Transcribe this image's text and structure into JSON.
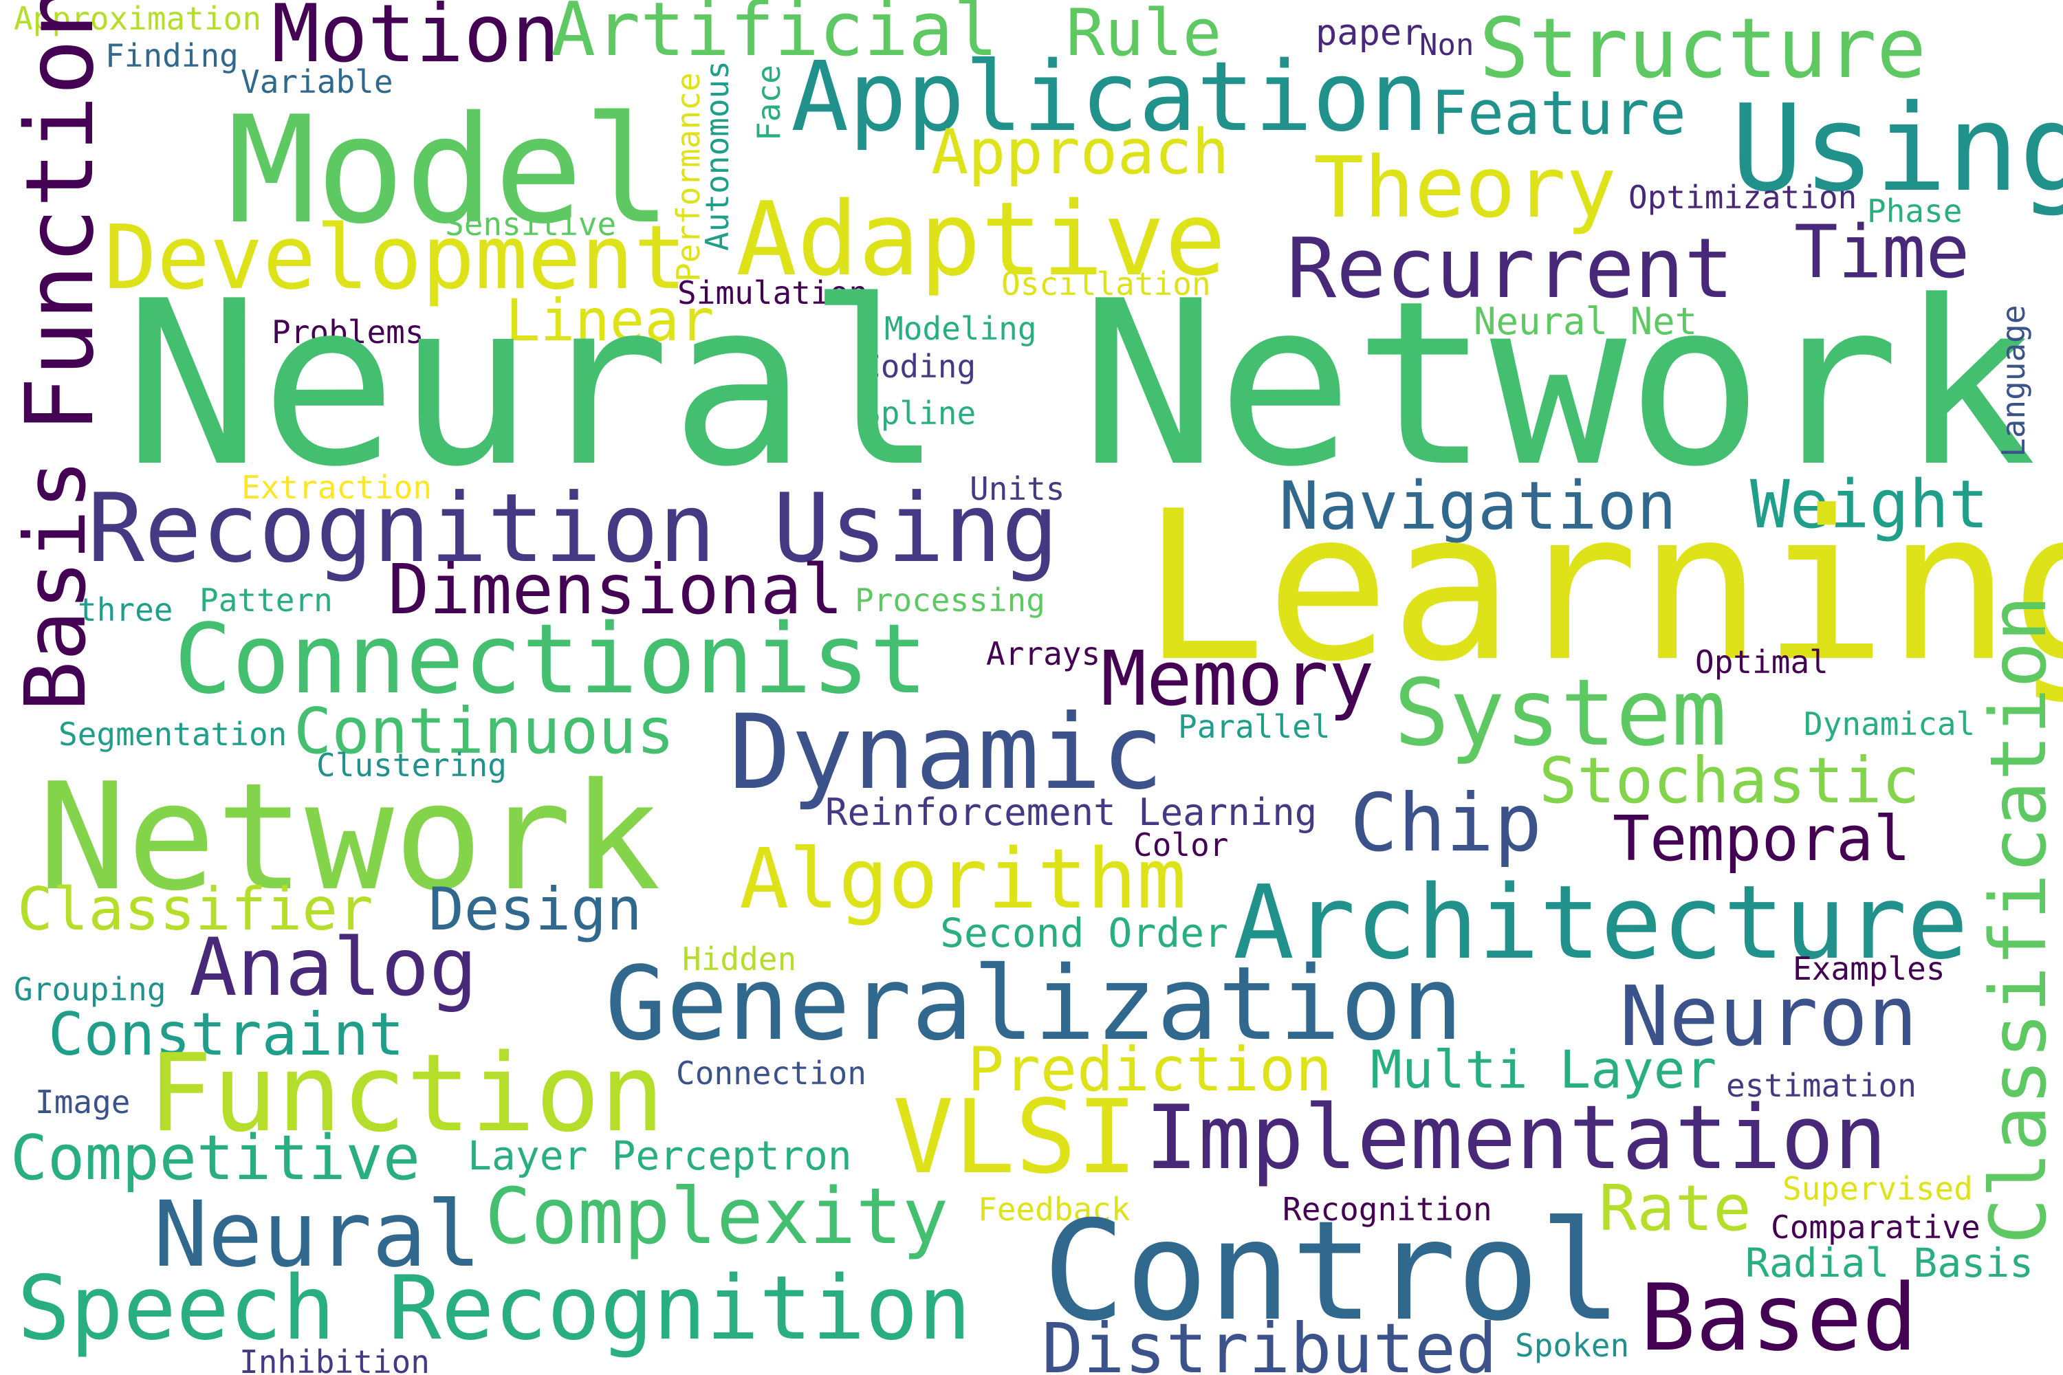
{
  "palette": {
    "lime": "#84d44b",
    "green": "#44bf70",
    "teal": "#21918c",
    "blue": "#31688e",
    "indigo": "#443983",
    "purple": "#440154",
    "yellow": "#dde318",
    "yellowgreen": "#b5de2b",
    "mint": "#5ec962",
    "seafoam": "#28ae80",
    "darkteal": "#1f9e89",
    "slate": "#3b528b",
    "navy": "#482878",
    "gold": "#fde725"
  },
  "words": [
    {
      "text": "Approximation",
      "color": "yellowgreen"
    },
    {
      "text": "Finding",
      "color": "blue"
    },
    {
      "text": "Variable",
      "color": "blue"
    },
    {
      "text": "Motion",
      "color": "purple"
    },
    {
      "text": "Artificial",
      "color": "mint"
    },
    {
      "text": "Rule",
      "color": "mint"
    },
    {
      "text": "paper",
      "color": "navy"
    },
    {
      "text": "Non",
      "color": "navy"
    },
    {
      "text": "Structure",
      "color": "mint"
    },
    {
      "text": "Model",
      "color": "mint"
    },
    {
      "text": "Application",
      "color": "teal"
    },
    {
      "text": "Feature",
      "color": "teal"
    },
    {
      "text": "Using",
      "color": "teal"
    },
    {
      "text": "Approach",
      "color": "yellow"
    },
    {
      "text": "Theory",
      "color": "yellow"
    },
    {
      "text": "Optimization",
      "color": "navy"
    },
    {
      "text": "Phase",
      "color": "seafoam"
    },
    {
      "text": "Sensitive",
      "color": "mint"
    },
    {
      "text": "Development",
      "color": "yellow"
    },
    {
      "text": "Adaptive",
      "color": "yellow"
    },
    {
      "text": "Recurrent",
      "color": "navy"
    },
    {
      "text": "Time",
      "color": "navy"
    },
    {
      "text": "Simulation",
      "color": "purple"
    },
    {
      "text": "Oscillation",
      "color": "yellow"
    },
    {
      "text": "Linear",
      "color": "yellow"
    },
    {
      "text": "Neural Net",
      "color": "mint"
    },
    {
      "text": "Problems",
      "color": "purple"
    },
    {
      "text": "Modeling",
      "color": "seafoam"
    },
    {
      "text": "Coding",
      "color": "indigo"
    },
    {
      "text": "Spline",
      "color": "seafoam"
    },
    {
      "text": "Neural Network",
      "color": "green"
    },
    {
      "text": "Extraction",
      "color": "gold"
    },
    {
      "text": "Units",
      "color": "indigo"
    },
    {
      "text": "Recognition Using",
      "color": "indigo"
    },
    {
      "text": "Navigation",
      "color": "blue"
    },
    {
      "text": "Weight",
      "color": "darkteal"
    },
    {
      "text": "Learning",
      "color": "yellow"
    },
    {
      "text": "Dimensional",
      "color": "purple"
    },
    {
      "text": "three",
      "color": "darkteal"
    },
    {
      "text": "Pattern",
      "color": "seafoam"
    },
    {
      "text": "Processing",
      "color": "mint"
    },
    {
      "text": "Connectionist",
      "color": "green"
    },
    {
      "text": "Arrays",
      "color": "purple"
    },
    {
      "text": "Memory",
      "color": "purple"
    },
    {
      "text": "Optimal",
      "color": "purple"
    },
    {
      "text": "System",
      "color": "mint"
    },
    {
      "text": "Segmentation",
      "color": "darkteal"
    },
    {
      "text": "Continuous",
      "color": "green"
    },
    {
      "text": "Dynamic",
      "color": "slate"
    },
    {
      "text": "Parallel",
      "color": "darkteal"
    },
    {
      "text": "Dynamical",
      "color": "seafoam"
    },
    {
      "text": "Clustering",
      "color": "teal"
    },
    {
      "text": "Network",
      "color": "lime"
    },
    {
      "text": "Stochastic",
      "color": "lime"
    },
    {
      "text": "Reinforcement Learning",
      "color": "indigo"
    },
    {
      "text": "Chip",
      "color": "slate"
    },
    {
      "text": "Temporal",
      "color": "purple"
    },
    {
      "text": "Color",
      "color": "purple"
    },
    {
      "text": "Algorithm",
      "color": "yellow"
    },
    {
      "text": "Classifier",
      "color": "yellowgreen"
    },
    {
      "text": "Design",
      "color": "blue"
    },
    {
      "text": "Architecture",
      "color": "teal"
    },
    {
      "text": "Second Order",
      "color": "seafoam"
    },
    {
      "text": "Analog",
      "color": "navy"
    },
    {
      "text": "Hidden",
      "color": "yellowgreen"
    },
    {
      "text": "Grouping",
      "color": "teal"
    },
    {
      "text": "Generalization",
      "color": "blue"
    },
    {
      "text": "Neuron",
      "color": "slate"
    },
    {
      "text": "Examples",
      "color": "purple"
    },
    {
      "text": "Constraint",
      "color": "darkteal"
    },
    {
      "text": "Prediction",
      "color": "yellow"
    },
    {
      "text": "Multi Layer",
      "color": "seafoam"
    },
    {
      "text": "Connection",
      "color": "slate"
    },
    {
      "text": "estimation",
      "color": "indigo"
    },
    {
      "text": "Image",
      "color": "slate"
    },
    {
      "text": "Function",
      "color": "yellowgreen"
    },
    {
      "text": "VLSI",
      "color": "yellow"
    },
    {
      "text": "Implementation",
      "color": "navy"
    },
    {
      "text": "Competitive",
      "color": "seafoam"
    },
    {
      "text": "Layer Perceptron",
      "color": "seafoam"
    },
    {
      "text": "Supervised",
      "color": "yellow"
    },
    {
      "text": "Feedback",
      "color": "yellow"
    },
    {
      "text": "Complexity",
      "color": "green"
    },
    {
      "text": "Recognition",
      "color": "purple"
    },
    {
      "text": "Rate",
      "color": "yellowgreen"
    },
    {
      "text": "Comparative",
      "color": "purple"
    },
    {
      "text": "Neural",
      "color": "blue"
    },
    {
      "text": "Control",
      "color": "blue"
    },
    {
      "text": "Radial Basis",
      "color": "seafoam"
    },
    {
      "text": "Speech Recognition",
      "color": "seafoam"
    },
    {
      "text": "Based",
      "color": "purple"
    },
    {
      "text": "Distributed",
      "color": "slate"
    },
    {
      "text": "Inhibition",
      "color": "indigo"
    },
    {
      "text": "Spoken",
      "color": "teal"
    },
    {
      "text": "Function",
      "color": "purple"
    },
    {
      "text": "Basis",
      "color": "purple"
    },
    {
      "text": "Performance",
      "color": "yellow"
    },
    {
      "text": "Autonomous",
      "color": "darkteal"
    },
    {
      "text": "Face",
      "color": "seafoam"
    },
    {
      "text": "Language",
      "color": "slate"
    },
    {
      "text": "Classification",
      "color": "mint"
    }
  ]
}
